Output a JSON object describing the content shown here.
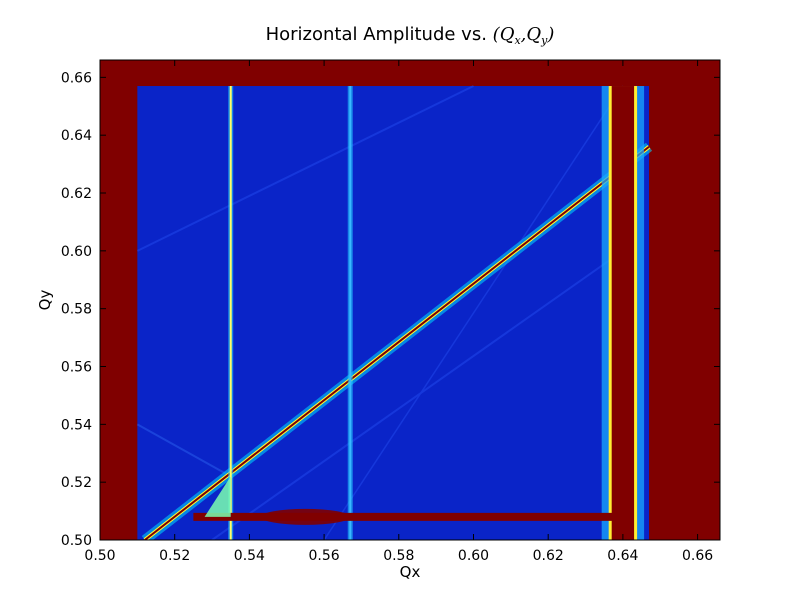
{
  "chart_data": {
    "type": "heatmap",
    "title": "Horizontal Amplitude vs. ",
    "title_math": "(Q_x, Q_y)",
    "title_math_parts": {
      "open": "(",
      "q1": "Q",
      "s1": "x",
      "comma": ",",
      "q2": "Q",
      "s2": "y",
      "close": ")"
    },
    "xlabel": "Qx",
    "ylabel": "Qy",
    "xlim": [
      0.5,
      0.666
    ],
    "ylim": [
      0.5,
      0.666
    ],
    "x_ticks": [
      "0.50",
      "0.52",
      "0.54",
      "0.56",
      "0.58",
      "0.60",
      "0.62",
      "0.64",
      "0.66"
    ],
    "y_ticks": [
      "0.50",
      "0.52",
      "0.54",
      "0.56",
      "0.58",
      "0.60",
      "0.62",
      "0.64",
      "0.66"
    ],
    "colormap": "jet",
    "saturated_color": "#800000",
    "background_color": "#0a24c8",
    "scan_region": {
      "qx": [
        0.51,
        0.647
      ],
      "qy": [
        0.5,
        0.657
      ]
    },
    "resonance_lines": [
      {
        "kind": "diagonal",
        "from": [
          0.512,
          0.5
        ],
        "to": [
          0.647,
          0.636
        ],
        "color": "#800000"
      },
      {
        "kind": "vertical",
        "qx": 0.535,
        "qy": [
          0.5,
          0.657
        ],
        "color": "#ffff66"
      },
      {
        "kind": "vertical",
        "qx": 0.567,
        "qy": [
          0.5,
          0.657
        ],
        "color": "#39b8ff"
      },
      {
        "kind": "vertical_band",
        "qx": [
          0.637,
          0.643
        ],
        "qy": [
          0.5,
          0.657
        ],
        "color": "#800000"
      },
      {
        "kind": "horizontal_band",
        "qx": [
          0.525,
          0.64
        ],
        "qy": 0.508,
        "color": "#800000"
      }
    ]
  }
}
